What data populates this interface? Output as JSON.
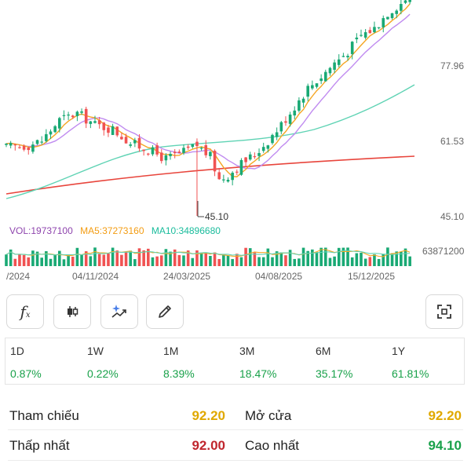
{
  "chart_data": {
    "type": "candlestick",
    "price_axis_ticks": [
      "77.96",
      "61.53",
      "45.10"
    ],
    "min_marker": "45.10",
    "volume_axis_tick": "63871200",
    "x_tick_labels": [
      "/2024",
      "04/11/2024",
      "24/03/2025",
      "04/08/2025",
      "15/12/2025"
    ],
    "legend": {
      "vol": "VOL:19737100",
      "ma5": "MA5:37273160",
      "ma10": "MA10:34896680"
    },
    "colors": {
      "up": "#19a974",
      "down": "#f05252",
      "ma_orange": "#f5a623",
      "ma_purple": "#c08bf0",
      "ma_teal": "#5fd3b4",
      "ma_red": "#e8453c",
      "legend_vol": "#8e44ad",
      "legend_ma5": "#f39c12",
      "legend_ma10": "#1abc9c"
    }
  },
  "toolbar": {
    "icons": [
      "fx-icon",
      "candle-icon",
      "sparkle-chart-icon",
      "pencil-icon",
      "fullscreen-icon"
    ],
    "fx_label": "f"
  },
  "performance": [
    {
      "period": "1D",
      "value": "0.87%"
    },
    {
      "period": "1W",
      "value": "0.22%"
    },
    {
      "period": "1M",
      "value": "8.39%"
    },
    {
      "period": "3M",
      "value": "18.47%"
    },
    {
      "period": "6M",
      "value": "35.17%"
    },
    {
      "period": "1Y",
      "value": "61.81%"
    }
  ],
  "stats": {
    "tham_chieu": {
      "label": "Tham chiếu",
      "value": "92.20",
      "color": "#e0a800"
    },
    "mo_cua": {
      "label": "Mở cửa",
      "value": "92.20",
      "color": "#e0a800"
    },
    "thap_nhat": {
      "label": "Thấp nhất",
      "value": "92.00",
      "color": "#c0262d"
    },
    "cao_nhat": {
      "label": "Cao nhất",
      "value": "94.10",
      "color": "#19a14a"
    }
  }
}
